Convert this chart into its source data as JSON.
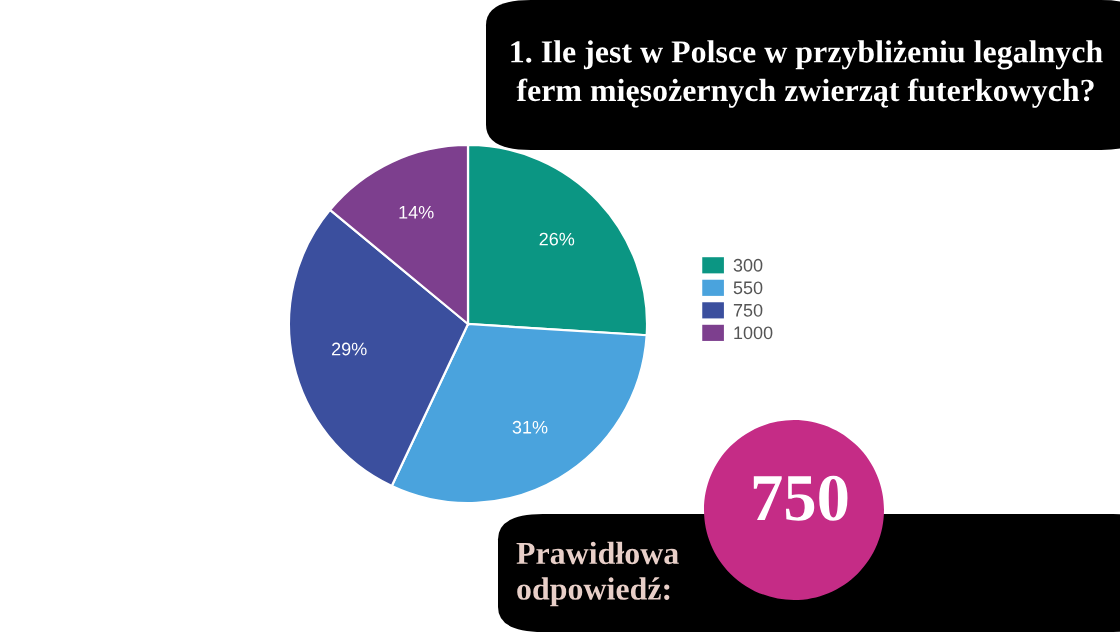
{
  "chart_data": {
    "type": "pie",
    "title": "1. Ile jest w Polsce w przybliżeniu legalnych\nferm mięsożernych zwierząt futerkowych?",
    "categories": [
      "300",
      "550",
      "750",
      "1000"
    ],
    "values": [
      26,
      31,
      29,
      14
    ],
    "value_labels": [
      "26%",
      "31%",
      "29%",
      "14%"
    ],
    "colors": [
      "#0b9683",
      "#4aa3dd",
      "#3b4f9e",
      "#7d3f8e"
    ],
    "legend": "right",
    "annotations": [
      "Prawidłowa\nodpowiedź:",
      "750"
    ]
  }
}
